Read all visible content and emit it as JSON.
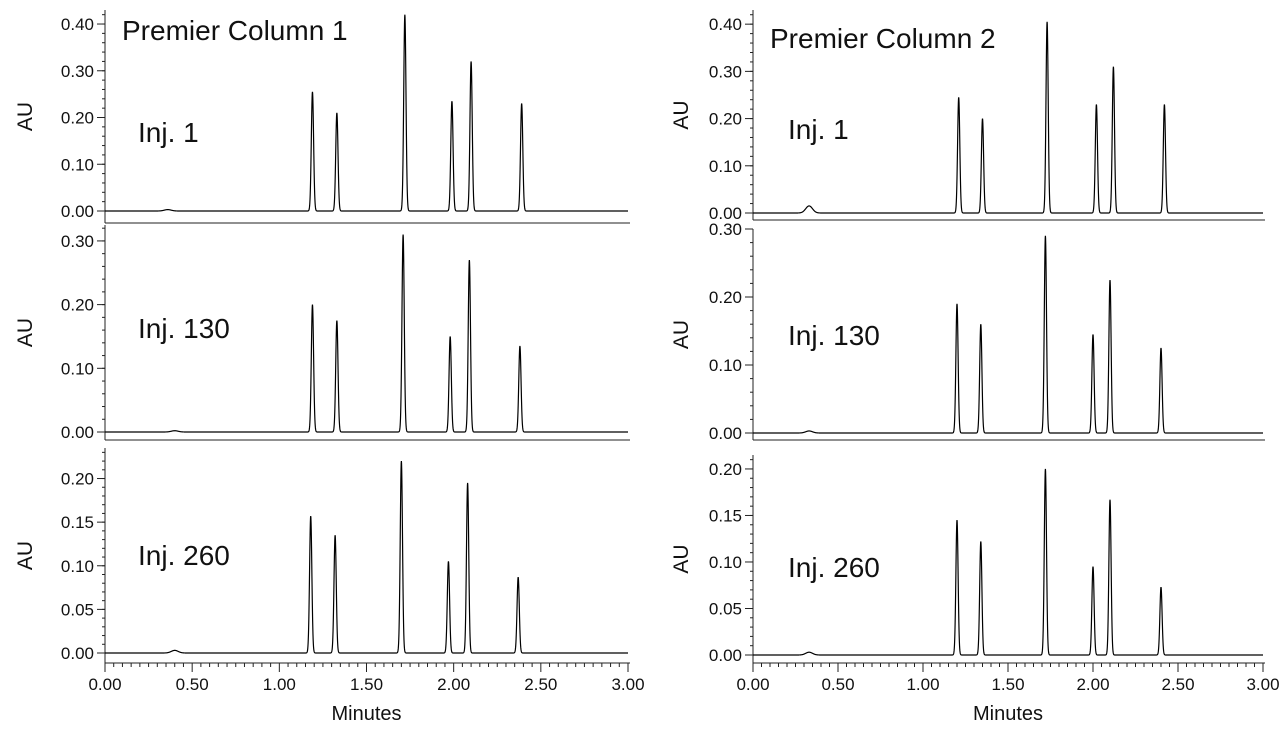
{
  "chart_data": [
    {
      "type": "line",
      "column_title": "Premier Column 1",
      "injection_label": "Inj. 1",
      "xlabel": "",
      "ylabel": "AU",
      "xlim": [
        0,
        3.0
      ],
      "ylim": [
        -0.01,
        0.43
      ],
      "yticks": [
        0.0,
        0.1,
        0.2,
        0.3,
        0.4
      ],
      "ytick_labels": [
        "0.00",
        "0.10",
        "0.20",
        "0.30",
        "0.40"
      ],
      "peaks": [
        {
          "x": 0.36,
          "y": 0.003
        },
        {
          "x": 1.19,
          "y": 0.255
        },
        {
          "x": 1.33,
          "y": 0.21
        },
        {
          "x": 1.72,
          "y": 0.42
        },
        {
          "x": 1.99,
          "y": 0.235
        },
        {
          "x": 2.1,
          "y": 0.32
        },
        {
          "x": 2.39,
          "y": 0.23
        }
      ]
    },
    {
      "type": "line",
      "injection_label": "Inj. 130",
      "xlabel": "",
      "ylabel": "AU",
      "xlim": [
        0,
        3.0
      ],
      "ylim": [
        -0.01,
        0.325
      ],
      "yticks": [
        0.0,
        0.1,
        0.2,
        0.3
      ],
      "ytick_labels": [
        "0.00",
        "0.10",
        "0.20",
        "0.30"
      ],
      "peaks": [
        {
          "x": 0.4,
          "y": 0.002
        },
        {
          "x": 1.19,
          "y": 0.2
        },
        {
          "x": 1.33,
          "y": 0.175
        },
        {
          "x": 1.71,
          "y": 0.31
        },
        {
          "x": 1.98,
          "y": 0.15
        },
        {
          "x": 2.09,
          "y": 0.27
        },
        {
          "x": 2.38,
          "y": 0.135
        }
      ]
    },
    {
      "type": "line",
      "injection_label": "Inj. 260",
      "xlabel": "Minutes",
      "ylabel": "AU",
      "xlim": [
        0,
        3.0
      ],
      "ylim": [
        -0.01,
        0.235
      ],
      "yticks": [
        0.0,
        0.05,
        0.1,
        0.15,
        0.2
      ],
      "ytick_labels": [
        "0.00",
        "0.05",
        "0.10",
        "0.15",
        "0.20"
      ],
      "xticks": [
        0.0,
        0.5,
        1.0,
        1.5,
        2.0,
        2.5,
        3.0
      ],
      "xtick_labels": [
        "0.00",
        "0.50",
        "1.00",
        "1.50",
        "2.00",
        "2.50",
        "3.00"
      ],
      "peaks": [
        {
          "x": 0.4,
          "y": 0.003
        },
        {
          "x": 1.18,
          "y": 0.157
        },
        {
          "x": 1.32,
          "y": 0.135
        },
        {
          "x": 1.7,
          "y": 0.22
        },
        {
          "x": 1.97,
          "y": 0.105
        },
        {
          "x": 2.08,
          "y": 0.195
        },
        {
          "x": 2.37,
          "y": 0.087
        }
      ]
    },
    {
      "type": "line",
      "column_title": "Premier Column 2",
      "injection_label": "Inj. 1",
      "xlabel": "",
      "ylabel": "AU",
      "xlim": [
        0,
        3.0
      ],
      "ylim": [
        -0.01,
        0.43
      ],
      "yticks": [
        0.0,
        0.1,
        0.2,
        0.3,
        0.4
      ],
      "ytick_labels": [
        "0.00",
        "0.10",
        "0.20",
        "0.30",
        "0.40"
      ],
      "peaks": [
        {
          "x": 0.33,
          "y": 0.015
        },
        {
          "x": 1.21,
          "y": 0.245
        },
        {
          "x": 1.35,
          "y": 0.2
        },
        {
          "x": 1.73,
          "y": 0.405
        },
        {
          "x": 2.02,
          "y": 0.23
        },
        {
          "x": 2.12,
          "y": 0.31
        },
        {
          "x": 2.42,
          "y": 0.23
        }
      ]
    },
    {
      "type": "line",
      "injection_label": "Inj. 130",
      "xlabel": "",
      "ylabel": "AU",
      "xlim": [
        0,
        3.0
      ],
      "ylim": [
        -0.01,
        0.3
      ],
      "yticks": [
        0.0,
        0.1,
        0.2,
        0.3
      ],
      "ytick_labels": [
        "0.00",
        "0.10",
        "0.20",
        "0.30"
      ],
      "peaks": [
        {
          "x": 0.33,
          "y": 0.003
        },
        {
          "x": 1.2,
          "y": 0.19
        },
        {
          "x": 1.34,
          "y": 0.16
        },
        {
          "x": 1.72,
          "y": 0.29
        },
        {
          "x": 2.0,
          "y": 0.145
        },
        {
          "x": 2.1,
          "y": 0.225
        },
        {
          "x": 2.4,
          "y": 0.125
        }
      ]
    },
    {
      "type": "line",
      "injection_label": "Inj. 260",
      "xlabel": "Minutes",
      "ylabel": "AU",
      "xlim": [
        0,
        3.0
      ],
      "ylim": [
        -0.01,
        0.215
      ],
      "yticks": [
        0.0,
        0.05,
        0.1,
        0.15,
        0.2
      ],
      "ytick_labels": [
        "0.00",
        "0.05",
        "0.10",
        "0.15",
        "0.20"
      ],
      "xticks": [
        0.0,
        0.5,
        1.0,
        1.5,
        2.0,
        2.5,
        3.0
      ],
      "xtick_labels": [
        "0.00",
        "0.50",
        "1.00",
        "1.50",
        "2.00",
        "2.50",
        "3.00"
      ],
      "peaks": [
        {
          "x": 0.33,
          "y": 0.003
        },
        {
          "x": 1.2,
          "y": 0.145
        },
        {
          "x": 1.34,
          "y": 0.122
        },
        {
          "x": 1.72,
          "y": 0.2
        },
        {
          "x": 2.0,
          "y": 0.095
        },
        {
          "x": 2.1,
          "y": 0.167
        },
        {
          "x": 2.4,
          "y": 0.073
        }
      ]
    }
  ]
}
